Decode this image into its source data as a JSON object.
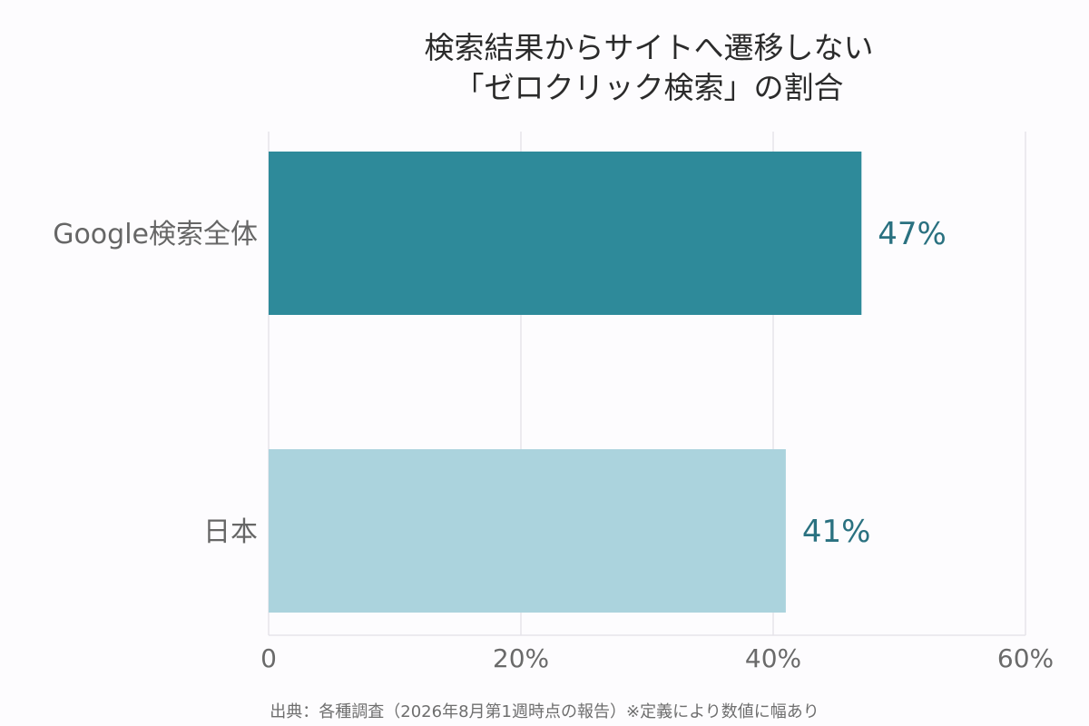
{
  "chart_data": {
    "type": "bar",
    "orientation": "horizontal",
    "title": "検索結果からサイトへ遷移しない",
    "subtitle": "「ゼロクリック検索」の割合",
    "categories": [
      "Google検索全体",
      "日本"
    ],
    "values": [
      47,
      41
    ],
    "value_labels": [
      "47%",
      "41%"
    ],
    "xlim": [
      0,
      60
    ],
    "xticks": [
      0,
      20,
      40,
      60
    ],
    "xtick_labels": [
      "0",
      "20%",
      "40%",
      "60%"
    ],
    "grid": true,
    "bar_colors": [
      "#2e8a9a",
      "#abd3dd"
    ],
    "value_label_color": "#2a7180",
    "source": "出典：各種調査（2026年8月第1週時点の報告）※定義により数値に幅あり"
  }
}
